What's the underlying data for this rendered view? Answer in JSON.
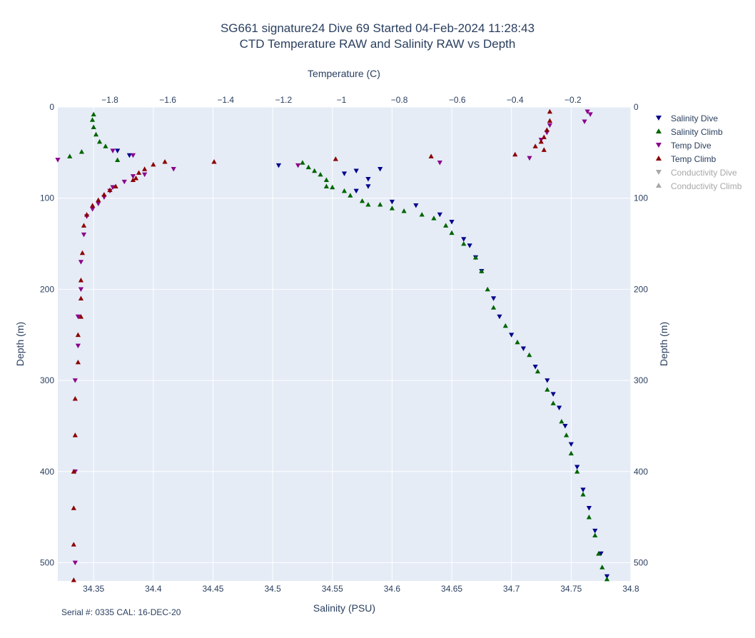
{
  "title": {
    "line1": "SG661 signature24 Dive 69 Started 04-Feb-2024 11:28:43",
    "line2": "CTD Temperature RAW and Salinity RAW vs Depth"
  },
  "footer": {
    "serial": "Serial #: 0335  CAL: 16-DEC-20"
  },
  "chart_data": {
    "type": "scatter",
    "xaxis_bottom": {
      "label": "Salinity (PSU)",
      "range": [
        34.32,
        34.8
      ],
      "ticks": [
        "34.35",
        "34.4",
        "34.45",
        "34.5",
        "34.55",
        "34.6",
        "34.65",
        "34.7",
        "34.75",
        "34.8"
      ]
    },
    "xaxis_top": {
      "label": "Temperature (C)",
      "range": [
        -1.98,
        0.0
      ],
      "ticks": [
        "−1.8",
        "−1.6",
        "−1.4",
        "−1.2",
        "−1",
        "−0.8",
        "−0.6",
        "−0.4",
        "−0.2"
      ]
    },
    "yaxis": {
      "label": "Depth (m)",
      "range": [
        520,
        0
      ],
      "reversed": true,
      "ticks": [
        "0",
        "100",
        "200",
        "300",
        "400",
        "500"
      ]
    },
    "grid": true,
    "legend_position": "right",
    "series": [
      {
        "name": "Salinity Dive",
        "axis": "salinity",
        "marker": "triangle-down",
        "color": "#00008b",
        "visible": true,
        "points": [
          [
            34.37,
            48
          ],
          [
            34.38,
            53
          ],
          [
            34.505,
            64
          ],
          [
            34.59,
            68
          ],
          [
            34.57,
            70
          ],
          [
            34.56,
            73
          ],
          [
            34.58,
            79
          ],
          [
            34.58,
            87
          ],
          [
            34.57,
            92
          ],
          [
            34.6,
            104
          ],
          [
            34.62,
            108
          ],
          [
            34.64,
            118
          ],
          [
            34.65,
            126
          ],
          [
            34.66,
            145
          ],
          [
            34.665,
            152
          ],
          [
            34.67,
            165
          ],
          [
            34.675,
            180
          ],
          [
            34.685,
            210
          ],
          [
            34.69,
            230
          ],
          [
            34.7,
            250
          ],
          [
            34.71,
            265
          ],
          [
            34.72,
            285
          ],
          [
            34.73,
            300
          ],
          [
            34.735,
            315
          ],
          [
            34.74,
            330
          ],
          [
            34.745,
            350
          ],
          [
            34.75,
            370
          ],
          [
            34.755,
            395
          ],
          [
            34.76,
            420
          ],
          [
            34.765,
            440
          ],
          [
            34.77,
            465
          ],
          [
            34.775,
            490
          ],
          [
            34.78,
            515
          ]
        ]
      },
      {
        "name": "Salinity Climb",
        "axis": "salinity",
        "marker": "triangle-up",
        "color": "#006400",
        "visible": true,
        "points": [
          [
            34.35,
            8
          ],
          [
            34.349,
            14
          ],
          [
            34.35,
            22
          ],
          [
            34.352,
            30
          ],
          [
            34.355,
            38
          ],
          [
            34.36,
            43
          ],
          [
            34.33,
            54
          ],
          [
            34.34,
            49
          ],
          [
            34.37,
            58
          ],
          [
            34.525,
            61
          ],
          [
            34.53,
            66
          ],
          [
            34.535,
            70
          ],
          [
            34.54,
            74
          ],
          [
            34.545,
            80
          ],
          [
            34.545,
            87
          ],
          [
            34.55,
            88
          ],
          [
            34.56,
            92
          ],
          [
            34.565,
            97
          ],
          [
            34.575,
            103
          ],
          [
            34.58,
            107
          ],
          [
            34.59,
            107
          ],
          [
            34.6,
            111
          ],
          [
            34.61,
            114
          ],
          [
            34.625,
            118
          ],
          [
            34.635,
            122
          ],
          [
            34.645,
            130
          ],
          [
            34.65,
            138
          ],
          [
            34.66,
            150
          ],
          [
            34.67,
            165
          ],
          [
            34.675,
            180
          ],
          [
            34.68,
            200
          ],
          [
            34.685,
            220
          ],
          [
            34.695,
            240
          ],
          [
            34.705,
            258
          ],
          [
            34.715,
            272
          ],
          [
            34.722,
            290
          ],
          [
            34.73,
            310
          ],
          [
            34.735,
            325
          ],
          [
            34.742,
            345
          ],
          [
            34.746,
            360
          ],
          [
            34.75,
            380
          ],
          [
            34.755,
            400
          ],
          [
            34.76,
            425
          ],
          [
            34.765,
            450
          ],
          [
            34.77,
            470
          ],
          [
            34.773,
            490
          ],
          [
            34.776,
            505
          ],
          [
            34.78,
            518
          ]
        ]
      },
      {
        "name": "Temp Dive",
        "axis": "temperature",
        "marker": "triangle-down",
        "color": "#8b008b",
        "visible": true,
        "points": [
          [
            -0.15,
            5
          ],
          [
            -0.14,
            8
          ],
          [
            -0.16,
            16
          ],
          [
            -0.28,
            20
          ],
          [
            -0.29,
            28
          ],
          [
            -0.31,
            36
          ],
          [
            -0.35,
            56
          ],
          [
            -0.66,
            61
          ],
          [
            -1.98,
            58
          ],
          [
            -1.79,
            48
          ],
          [
            -1.72,
            53
          ],
          [
            -1.15,
            64
          ],
          [
            -1.58,
            68
          ],
          [
            -1.68,
            74
          ],
          [
            -1.72,
            76
          ],
          [
            -1.75,
            82
          ],
          [
            -1.79,
            88
          ],
          [
            -1.8,
            92
          ],
          [
            -1.82,
            99
          ],
          [
            -1.84,
            106
          ],
          [
            -1.86,
            112
          ],
          [
            -1.88,
            120
          ],
          [
            -1.89,
            140
          ],
          [
            -1.9,
            170
          ],
          [
            -1.9,
            200
          ],
          [
            -1.91,
            230
          ],
          [
            -1.91,
            262
          ],
          [
            -1.92,
            300
          ],
          [
            -1.92,
            400
          ],
          [
            -1.92,
            500
          ]
        ]
      },
      {
        "name": "Temp Climb",
        "axis": "temperature",
        "marker": "triangle-up",
        "color": "#8b0000",
        "visible": true,
        "points": [
          [
            -0.28,
            5
          ],
          [
            -0.28,
            15
          ],
          [
            -0.29,
            25
          ],
          [
            -0.3,
            33
          ],
          [
            -0.31,
            38
          ],
          [
            -0.33,
            43
          ],
          [
            -0.3,
            47
          ],
          [
            -0.4,
            52
          ],
          [
            -0.69,
            54
          ],
          [
            -1.02,
            57
          ],
          [
            -1.61,
            60
          ],
          [
            -1.65,
            63
          ],
          [
            -1.44,
            60
          ],
          [
            -1.68,
            68
          ],
          [
            -1.7,
            72
          ],
          [
            -1.71,
            78
          ],
          [
            -1.72,
            80
          ],
          [
            -1.78,
            87
          ],
          [
            -1.8,
            91
          ],
          [
            -1.82,
            96
          ],
          [
            -1.84,
            102
          ],
          [
            -1.86,
            108
          ],
          [
            -1.88,
            118
          ],
          [
            -1.89,
            130
          ],
          [
            -1.895,
            160
          ],
          [
            -1.9,
            190
          ],
          [
            -1.9,
            210
          ],
          [
            -1.9,
            230
          ],
          [
            -1.91,
            250
          ],
          [
            -1.91,
            280
          ],
          [
            -1.92,
            320
          ],
          [
            -1.92,
            360
          ],
          [
            -1.925,
            400
          ],
          [
            -1.925,
            440
          ],
          [
            -1.925,
            480
          ],
          [
            -1.925,
            519
          ]
        ]
      },
      {
        "name": "Conductivity Dive",
        "axis": "none",
        "marker": "triangle-down",
        "color": "#a8a8a8",
        "visible": false,
        "points": []
      },
      {
        "name": "Conductivity Climb",
        "axis": "none",
        "marker": "triangle-up",
        "color": "#a8a8a8",
        "visible": false,
        "points": []
      }
    ]
  }
}
